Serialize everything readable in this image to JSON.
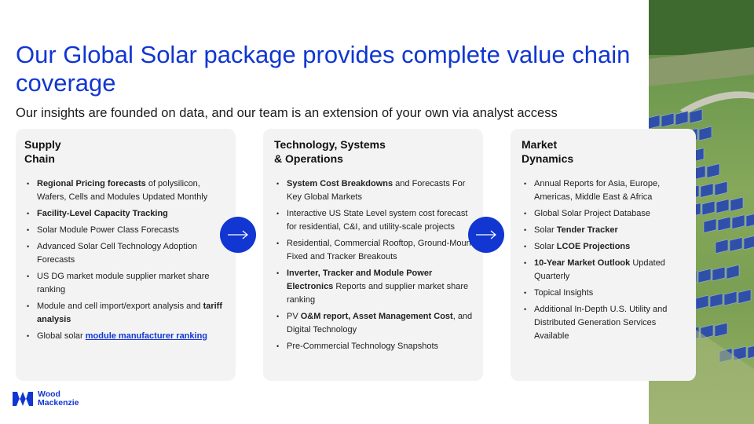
{
  "slide": {
    "title": "Our Global Solar package provides complete value chain coverage",
    "subtitle": "Our insights are founded on data, and our team is an extension of your own via analyst access"
  },
  "columns": [
    {
      "heading_line1": "Supply",
      "heading_line2": "Chain",
      "items": [
        [
          {
            "t": "Regional Pricing forecasts",
            "b": true
          },
          {
            "t": " of polysilicon, Wafers, Cells and Modules Updated Monthly"
          }
        ],
        [
          {
            "t": "Facility-Level Capacity Tracking",
            "b": true
          }
        ],
        [
          {
            "t": "Solar Module Power Class Forecasts"
          }
        ],
        [
          {
            "t": "Advanced Solar Cell Technology Adoption Forecasts"
          }
        ],
        [
          {
            "t": "US DG market module supplier market share ranking"
          }
        ],
        [
          {
            "t": "Module and cell import/export analysis and "
          },
          {
            "t": "tariff analysis",
            "b": true
          }
        ],
        [
          {
            "t": "Global solar "
          },
          {
            "t": "module manufacturer ranking",
            "link": true
          }
        ]
      ]
    },
    {
      "heading_line1": "Technology, Systems",
      "heading_line2": "& Operations",
      "items": [
        [
          {
            "t": "System Cost Breakdowns",
            "b": true
          },
          {
            "t": " and Forecasts For Key Global Markets"
          }
        ],
        [
          {
            "t": "Interactive US State Level system cost forecast for residential, C&I, and utility-scale projects"
          }
        ],
        [
          {
            "t": "Residential, Commercial Rooftop, Ground-Mount Fixed and Tracker Breakouts"
          }
        ],
        [
          {
            "t": "Inverter, Tracker and Module Power Electronics",
            "b": true
          },
          {
            "t": " Reports and supplier market share ranking"
          }
        ],
        [
          {
            "t": "PV "
          },
          {
            "t": "O&M report, Asset Management Cost",
            "b": true
          },
          {
            "t": ", and Digital Technology"
          }
        ],
        [
          {
            "t": "Pre-Commercial Technology Snapshots"
          }
        ]
      ]
    },
    {
      "heading_line1": "Market",
      "heading_line2": "Dynamics",
      "items": [
        [
          {
            "t": "Annual Reports for Asia, Europe, Americas, Middle East & Africa"
          }
        ],
        [
          {
            "t": "Global Solar Project Database"
          }
        ],
        [
          {
            "t": "Solar "
          },
          {
            "t": "Tender Tracker",
            "b": true
          }
        ],
        [
          {
            "t": "Solar "
          },
          {
            "t": "LCOE Projections",
            "b": true
          }
        ],
        [
          {
            "t": "10-Year Market Outlook",
            "b": true
          },
          {
            "t": " Updated Quarterly"
          }
        ],
        [
          {
            "t": "Topical Insights"
          }
        ],
        [
          {
            "t": "Additional In-Depth U.S. Utility and Distributed Generation Services Available"
          }
        ]
      ]
    }
  ],
  "logo": {
    "line1": "Wood",
    "line2": "Mackenzie",
    "icon": "wood-mackenzie-logo"
  },
  "icons": {
    "arrow": "arrow-right-icon"
  },
  "colors": {
    "accent": "#1136d1",
    "card": "#f3f3f3"
  }
}
